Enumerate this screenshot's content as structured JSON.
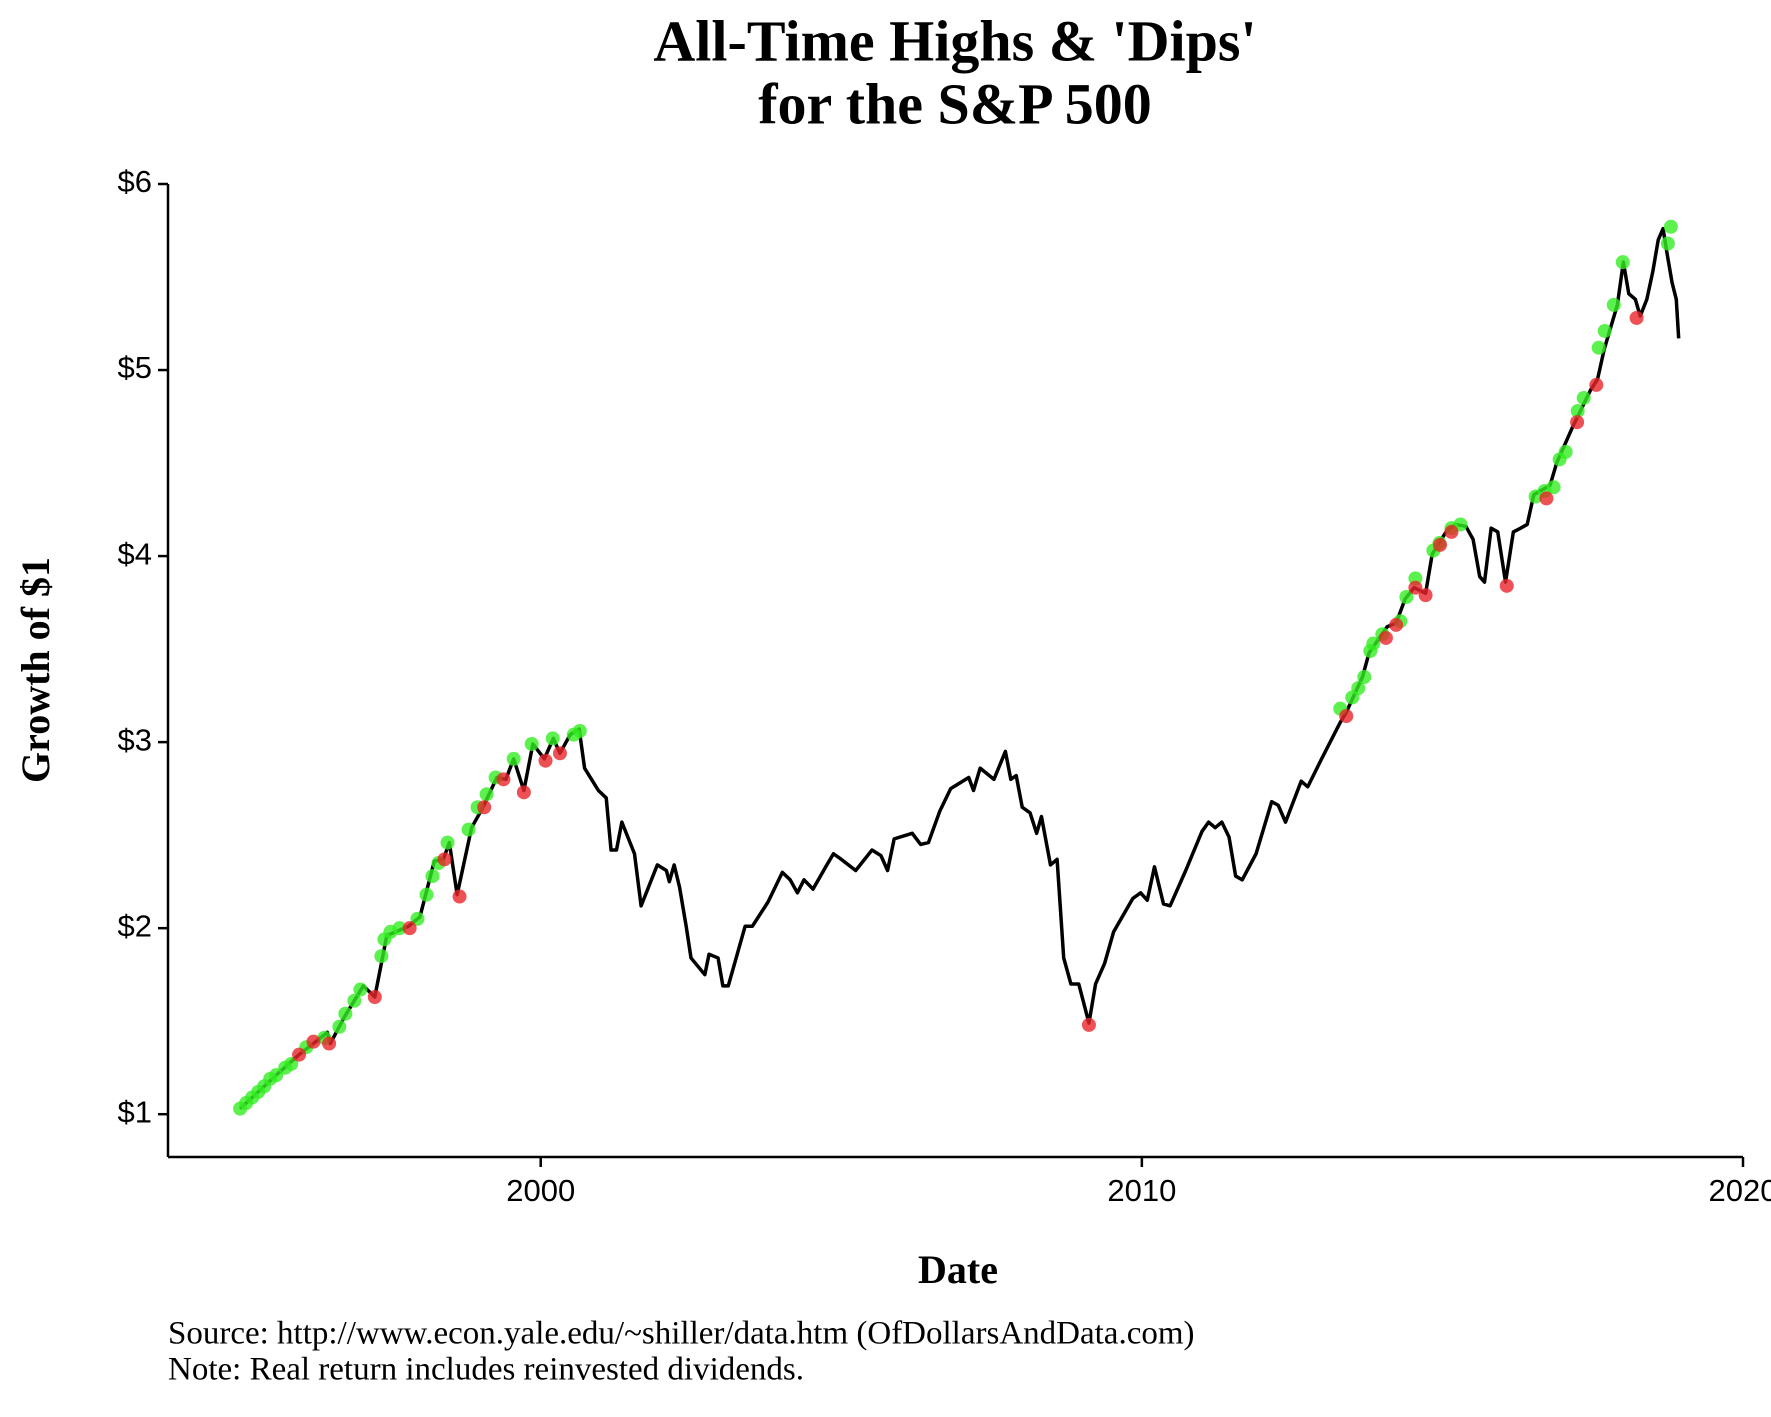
{
  "chart_data": {
    "type": "line",
    "title": [
      "All-Time Highs & 'Dips'",
      "for the S&P 500"
    ],
    "x_label": "Date",
    "y_label": "Growth of $1",
    "source": "Source:  http://www.econ.yale.edu/~shiller/data.htm (OfDollarsAndData.com)",
    "note": "Note:  Real return includes reinvested dividends.",
    "xlim": [
      1993.8,
      2020
    ],
    "xticks": [
      2000,
      2010,
      2020
    ],
    "ylim": [
      0.77,
      6
    ],
    "yticks": [
      {
        "value": 1,
        "label": "$1"
      },
      {
        "value": 2,
        "label": "$2"
      },
      {
        "value": 3,
        "label": "$3"
      },
      {
        "value": 4,
        "label": "$4"
      },
      {
        "value": 5,
        "label": "$5"
      },
      {
        "value": 6,
        "label": "$6"
      }
    ],
    "series": [
      {
        "type": "line",
        "color": "#000000",
        "x": [
          1995.0,
          1995.6,
          1995.98,
          1996.26,
          1996.45,
          1996.5,
          1996.73,
          1997.05,
          1997.24,
          1997.44,
          1997.8,
          1997.99,
          1998.23,
          1998.38,
          1998.48,
          1998.61,
          1998.85,
          1999.04,
          1999.27,
          1999.42,
          1999.55,
          1999.72,
          1999.87,
          2000.06,
          2000.21,
          2000.32,
          2000.49,
          2000.64,
          2000.73,
          2000.96,
          2001.09,
          2001.17,
          2001.26,
          2001.35,
          2001.56,
          2001.67,
          2001.94,
          2002.09,
          2002.14,
          2002.22,
          2002.31,
          2002.42,
          2002.5,
          2002.73,
          2002.8,
          2002.95,
          2003.03,
          2003.12,
          2003.4,
          2003.52,
          2003.78,
          2004.02,
          2004.15,
          2004.27,
          2004.38,
          2004.53,
          2004.76,
          2004.87,
          2005.0,
          2005.24,
          2005.51,
          2005.66,
          2005.77,
          2005.88,
          2006.18,
          2006.32,
          2006.45,
          2006.64,
          2006.82,
          2007.12,
          2007.2,
          2007.31,
          2007.54,
          2007.73,
          2007.82,
          2007.91,
          2008.01,
          2008.14,
          2008.25,
          2008.33,
          2008.48,
          2008.59,
          2008.7,
          2008.82,
          2008.95,
          2009.12,
          2009.23,
          2009.38,
          2009.53,
          2009.85,
          2009.98,
          2010.09,
          2010.21,
          2010.36,
          2010.47,
          2010.73,
          2011.0,
          2011.11,
          2011.22,
          2011.33,
          2011.45,
          2011.56,
          2011.67,
          2011.9,
          2012.16,
          2012.27,
          2012.39,
          2012.65,
          2012.76,
          2012.99,
          2013.29,
          2013.4,
          2013.67,
          2013.78,
          2014.08,
          2014.23,
          2014.38,
          2014.53,
          2014.72,
          2014.83,
          2015.06,
          2015.21,
          2015.39,
          2015.51,
          2015.62,
          2015.7,
          2015.81,
          2015.92,
          2016.05,
          2016.18,
          2016.3,
          2016.41,
          2016.52,
          2016.79,
          2016.9,
          2017.16,
          2017.46,
          2017.58,
          2017.69,
          2017.91,
          2018.01,
          2018.1,
          2018.21,
          2018.29,
          2018.4,
          2018.5,
          2018.59,
          2018.67,
          2018.74,
          2018.82,
          2018.89,
          2018.93
        ],
        "values": [
          1.03,
          1.21,
          1.32,
          1.39,
          1.44,
          1.38,
          1.52,
          1.69,
          1.63,
          1.96,
          2.01,
          2.06,
          2.36,
          2.37,
          2.46,
          2.18,
          2.54,
          2.65,
          2.81,
          2.8,
          2.91,
          2.74,
          2.99,
          2.91,
          3.02,
          2.94,
          3.04,
          3.07,
          2.86,
          2.74,
          2.7,
          2.42,
          2.42,
          2.57,
          2.4,
          2.12,
          2.34,
          2.31,
          2.25,
          2.34,
          2.22,
          2.01,
          1.84,
          1.75,
          1.86,
          1.84,
          1.69,
          1.69,
          2.01,
          2.01,
          2.14,
          2.3,
          2.26,
          2.19,
          2.26,
          2.21,
          2.34,
          2.4,
          2.37,
          2.31,
          2.42,
          2.39,
          2.31,
          2.48,
          2.51,
          2.45,
          2.46,
          2.63,
          2.75,
          2.81,
          2.74,
          2.86,
          2.8,
          2.95,
          2.8,
          2.82,
          2.65,
          2.62,
          2.51,
          2.6,
          2.34,
          2.37,
          1.84,
          1.7,
          1.7,
          1.49,
          1.7,
          1.81,
          1.98,
          2.16,
          2.19,
          2.15,
          2.33,
          2.13,
          2.12,
          2.31,
          2.52,
          2.57,
          2.54,
          2.57,
          2.49,
          2.28,
          2.26,
          2.4,
          2.68,
          2.66,
          2.57,
          2.79,
          2.76,
          2.91,
          3.1,
          3.16,
          3.35,
          3.48,
          3.62,
          3.64,
          3.77,
          3.83,
          3.8,
          4.01,
          4.13,
          4.17,
          4.16,
          4.09,
          3.89,
          3.86,
          4.15,
          4.13,
          3.86,
          4.13,
          4.15,
          4.17,
          4.33,
          4.38,
          4.5,
          4.69,
          4.89,
          4.95,
          5.11,
          5.35,
          5.58,
          5.41,
          5.38,
          5.29,
          5.38,
          5.53,
          5.7,
          5.76,
          5.62,
          5.47,
          5.38,
          5.17
        ]
      },
      {
        "type": "scatter",
        "color": "#33ee22",
        "x": [
          1995.0,
          1995.1,
          1995.2,
          1995.3,
          1995.4,
          1995.5,
          1995.6,
          1995.75,
          1995.85,
          1996.1,
          1996.4,
          1996.65,
          1996.75,
          1996.9,
          1997.0,
          1997.35,
          1997.4,
          1997.5,
          1997.65,
          1997.95,
          1998.1,
          1998.2,
          1998.3,
          1998.45,
          1998.8,
          1998.95,
          1999.1,
          1999.25,
          1999.55,
          1999.85,
          2000.2,
          2000.55,
          2000.65,
          2013.3,
          2013.5,
          2013.6,
          2013.7,
          2013.8,
          2013.85,
          2014.0,
          2014.3,
          2014.4,
          2014.55,
          2014.85,
          2014.95,
          2015.15,
          2015.3,
          2016.55,
          2016.7,
          2016.85,
          2016.95,
          2017.05,
          2017.25,
          2017.35,
          2017.6,
          2017.7,
          2017.85,
          2018.0,
          2018.75,
          2018.8
        ],
        "values": [
          1.03,
          1.06,
          1.09,
          1.12,
          1.15,
          1.19,
          1.21,
          1.25,
          1.27,
          1.36,
          1.41,
          1.47,
          1.54,
          1.61,
          1.67,
          1.85,
          1.94,
          1.98,
          2.0,
          2.05,
          2.18,
          2.28,
          2.35,
          2.46,
          2.53,
          2.65,
          2.72,
          2.81,
          2.91,
          2.99,
          3.02,
          3.04,
          3.06,
          3.18,
          3.24,
          3.29,
          3.35,
          3.49,
          3.53,
          3.58,
          3.65,
          3.78,
          3.88,
          4.03,
          4.07,
          4.15,
          4.17,
          4.32,
          4.35,
          4.37,
          4.52,
          4.56,
          4.78,
          4.85,
          5.12,
          5.21,
          5.35,
          5.58,
          5.68,
          5.77
        ]
      },
      {
        "type": "scatter",
        "color": "#e8262b",
        "x": [
          1995.98,
          1996.22,
          1996.48,
          1997.24,
          1997.82,
          1998.4,
          1998.65,
          1999.06,
          1999.38,
          1999.72,
          2000.08,
          2000.32,
          2009.12,
          2013.4,
          2014.06,
          2014.23,
          2014.55,
          2014.72,
          2014.96,
          2015.15,
          2016.07,
          2016.73,
          2017.24,
          2017.56,
          2018.23
        ],
        "values": [
          1.32,
          1.39,
          1.38,
          1.63,
          2.0,
          2.37,
          2.17,
          2.65,
          2.8,
          2.73,
          2.9,
          2.94,
          1.48,
          3.14,
          3.56,
          3.63,
          3.83,
          3.79,
          4.06,
          4.13,
          3.84,
          4.31,
          4.72,
          4.92,
          5.28
        ]
      }
    ]
  }
}
